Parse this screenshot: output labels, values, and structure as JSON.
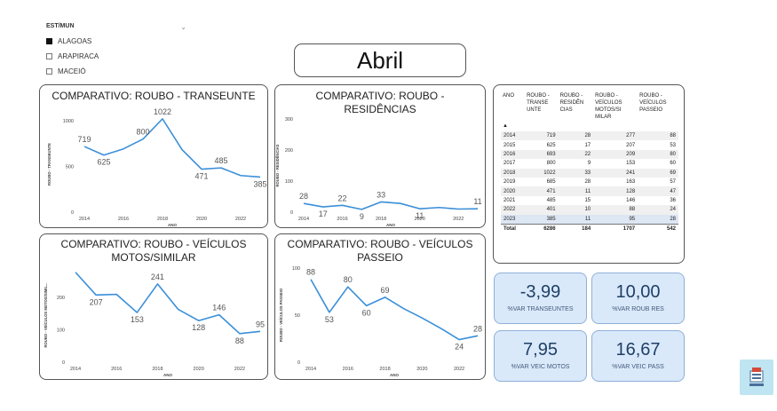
{
  "slicer": {
    "header": "EST/MUN",
    "items": [
      {
        "label": "ALAGOAS",
        "checked": true
      },
      {
        "label": "ARAPIRACA",
        "checked": false
      },
      {
        "label": "MACEIÓ",
        "checked": false
      }
    ]
  },
  "month": "Abril",
  "colors": {
    "line": "#3a8fd9",
    "kpi_bg": "#d9e9fa",
    "kpi_value": "#1f3f66"
  },
  "chart_data": [
    {
      "type": "line",
      "title": "COMPARATIVO: ROUBO - TRANSEUNTE",
      "xlabel": "ANO",
      "ylabel": "ROUBO - TRANSEUNTE",
      "x": [
        2014,
        2015,
        2016,
        2017,
        2018,
        2019,
        2020,
        2021,
        2022,
        2023
      ],
      "values": [
        719,
        625,
        693,
        800,
        1022,
        685,
        471,
        485,
        401,
        385
      ],
      "data_labels": [
        "719",
        "625",
        "",
        "800",
        "1022",
        "",
        "471",
        "485",
        "",
        "385"
      ],
      "xticks": [
        "2014",
        "2016",
        "2018",
        "2020",
        "2022"
      ],
      "yticks": [
        "0",
        "500",
        "1000"
      ],
      "ylim": [
        0,
        1050
      ]
    },
    {
      "type": "line",
      "title": "COMPARATIVO: ROUBO - RESIDÊNCIAS",
      "xlabel": "ANO",
      "ylabel": "ROUBO - RESIDÊNCIAS",
      "x": [
        2014,
        2015,
        2016,
        2017,
        2018,
        2019,
        2020,
        2021,
        2022,
        2023
      ],
      "values": [
        28,
        17,
        22,
        9,
        33,
        28,
        11,
        15,
        10,
        11
      ],
      "data_labels": [
        "28",
        "17",
        "22",
        "9",
        "33",
        "",
        "11",
        "",
        "",
        "11"
      ],
      "xticks": [
        "2014",
        "2016",
        "2018",
        "2020",
        "2022"
      ],
      "yticks": [
        "0",
        "100",
        "200",
        "300"
      ],
      "ylim": [
        0,
        300
      ]
    },
    {
      "type": "line",
      "title": "COMPARATIVO: ROUBO - VEÍCULOS MOTOS/SIMILAR",
      "xlabel": "ANO",
      "ylabel": "ROUBO - VEÍCULOS MOTOS/SIMIL...",
      "x": [
        2014,
        2015,
        2016,
        2017,
        2018,
        2019,
        2020,
        2021,
        2022,
        2023
      ],
      "values": [
        277,
        207,
        209,
        153,
        241,
        163,
        128,
        146,
        88,
        95
      ],
      "data_labels": [
        "",
        "207",
        "",
        "153",
        "241",
        "",
        "128",
        "146",
        "88",
        "95"
      ],
      "xticks": [
        "2014",
        "2016",
        "2018",
        "2020",
        "2022"
      ],
      "yticks": [
        "0",
        "100",
        "200"
      ],
      "ylim": [
        0,
        290
      ]
    },
    {
      "type": "line",
      "title": "COMPARATIVO: ROUBO - VEÍCULOS PASSEIO",
      "xlabel": "ANO",
      "ylabel": "ROUBO - VEÍCULOS PASSEIO",
      "x": [
        2014,
        2015,
        2016,
        2017,
        2018,
        2019,
        2020,
        2021,
        2022,
        2023
      ],
      "values": [
        88,
        53,
        80,
        60,
        69,
        57,
        47,
        36,
        24,
        28
      ],
      "data_labels": [
        "88",
        "53",
        "80",
        "60",
        "69",
        "",
        "",
        "",
        "24",
        "28"
      ],
      "xticks": [
        "2014",
        "2016",
        "2018",
        "2020",
        "2022"
      ],
      "yticks": [
        "0",
        "50",
        "100"
      ],
      "ylim": [
        0,
        100
      ]
    },
    {
      "type": "table",
      "headers": [
        "ANO",
        "ROUBO - TRANSE UNTE",
        "ROUBO - RESIDÊN CIAS",
        "ROUBO - VEÍCULOS MOTOS/SI MILAR",
        "ROUBO - VEÍCULOS PASSEIO"
      ],
      "rows": [
        [
          "2014",
          "719",
          "28",
          "277",
          "88"
        ],
        [
          "2015",
          "625",
          "17",
          "207",
          "53"
        ],
        [
          "2016",
          "693",
          "22",
          "209",
          "80"
        ],
        [
          "2017",
          "800",
          "9",
          "153",
          "60"
        ],
        [
          "2018",
          "1022",
          "33",
          "241",
          "69"
        ],
        [
          "2019",
          "685",
          "28",
          "163",
          "57"
        ],
        [
          "2020",
          "471",
          "11",
          "128",
          "47"
        ],
        [
          "2021",
          "485",
          "15",
          "146",
          "36"
        ],
        [
          "2022",
          "401",
          "10",
          "88",
          "24"
        ],
        [
          "2023",
          "385",
          "11",
          "95",
          "28"
        ]
      ],
      "total": [
        "Total",
        "6286",
        "184",
        "1707",
        "542"
      ]
    }
  ],
  "kpis": [
    {
      "value": "-3,99",
      "label": "%VAR TRANSEUNTES"
    },
    {
      "value": "10,00",
      "label": "%VAR ROUB RES"
    },
    {
      "value": "7,95",
      "label": "%VAR VEIC MOTOS"
    },
    {
      "value": "16,67",
      "label": "%VAR VEIC PASS"
    }
  ]
}
